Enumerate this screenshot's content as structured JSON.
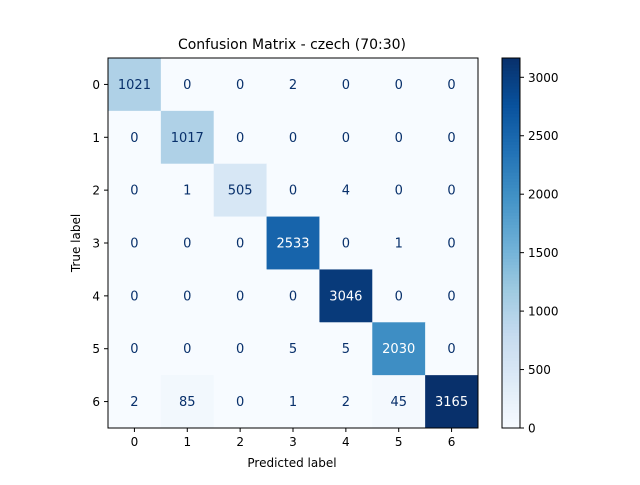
{
  "chart_data": {
    "type": "heatmap",
    "title": "Confusion Matrix - czech (70:30)",
    "xlabel": "Predicted label",
    "ylabel": "True label",
    "x_categories": [
      "0",
      "1",
      "2",
      "3",
      "4",
      "5",
      "6"
    ],
    "y_categories": [
      "0",
      "1",
      "2",
      "3",
      "4",
      "5",
      "6"
    ],
    "matrix": [
      [
        1021,
        0,
        0,
        2,
        0,
        0,
        0
      ],
      [
        0,
        1017,
        0,
        0,
        0,
        0,
        0
      ],
      [
        0,
        1,
        505,
        0,
        4,
        0,
        0
      ],
      [
        0,
        0,
        0,
        2533,
        0,
        1,
        0
      ],
      [
        0,
        0,
        0,
        0,
        3046,
        0,
        0
      ],
      [
        0,
        0,
        0,
        5,
        5,
        2030,
        0
      ],
      [
        2,
        85,
        0,
        1,
        2,
        45,
        3165
      ]
    ],
    "colormap": "Blues",
    "colorbar": {
      "vmin": 0,
      "vmax": 3165,
      "ticks": [
        0,
        500,
        1000,
        1500,
        2000,
        2500,
        3000
      ]
    },
    "colors": {
      "low": "#f7fbff",
      "high": "#08306b",
      "light_text": "#ffffff",
      "dark_text": "#08306b"
    }
  }
}
